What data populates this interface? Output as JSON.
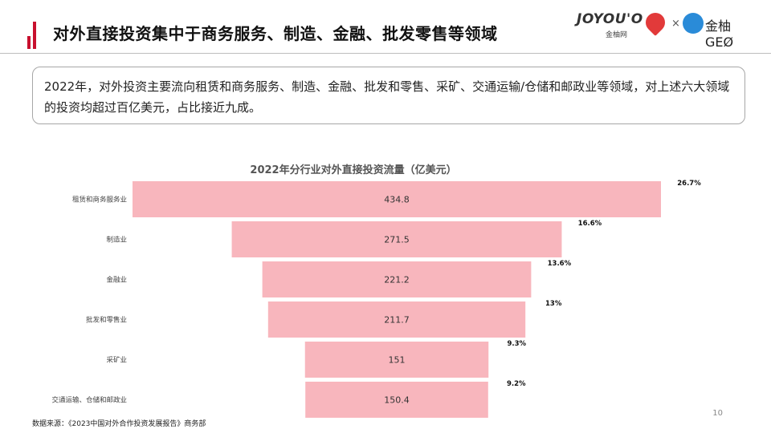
{
  "header": {
    "title": "对外直接投资集中于商务服务、制造、金融、批发零售等领域",
    "accent_color": "#c8102e"
  },
  "logos": {
    "brand1_text": "JOYOU'O",
    "brand1_sub": "金柚网",
    "separator": "×",
    "brand2_text": "金柚GEØ"
  },
  "summary": {
    "text": "2022年，对外投资主要流向租赁和商务服务、制造、金融、批发和零售、采矿、交通运输/仓储和邮政业等领域，对上述六大领域的投资均超过百亿美元，占比接近九成。"
  },
  "chart_data": {
    "type": "bar",
    "orientation": "horizontal-funnel",
    "title": "2022年分行业对外直接投资流量（亿美元）",
    "categories": [
      "租赁和商务服务业",
      "制造业",
      "金融业",
      "批发和零售业",
      "采矿业",
      "交通运输、仓储和邮政业"
    ],
    "values": [
      434.8,
      271.5,
      221.2,
      211.7,
      151,
      150.4
    ],
    "value_labels": [
      "434.8",
      "271.5",
      "221.2",
      "211.7",
      "151",
      "150.4"
    ],
    "share_labels": [
      "26.7%",
      "16.6%",
      "13.6%",
      "13%",
      "9.3%",
      "9.2%"
    ],
    "bar_color": "#f8b6bd",
    "grid": false,
    "legend": "none"
  },
  "footer": {
    "source": "数据来源：《2023中国对外合作投资发展报告》商务部",
    "page_number": "10"
  }
}
